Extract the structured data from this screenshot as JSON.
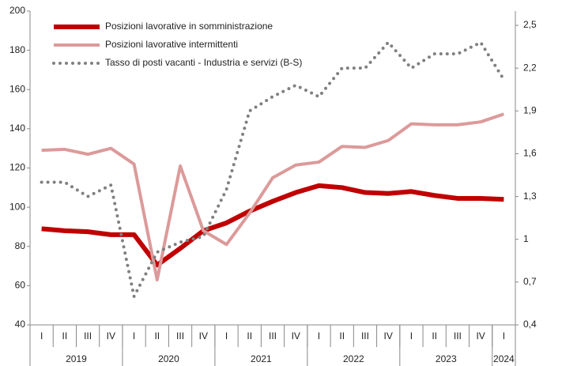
{
  "chart_data": {
    "type": "line",
    "categories": [
      "I",
      "II",
      "III",
      "IV",
      "I",
      "II",
      "III",
      "IV",
      "I",
      "II",
      "III",
      "IV",
      "I",
      "II",
      "III",
      "IV",
      "I",
      "II",
      "III",
      "IV",
      "I"
    ],
    "x_groups": [
      {
        "label": "2019",
        "span": 4
      },
      {
        "label": "2020",
        "span": 4
      },
      {
        "label": "2021",
        "span": 4
      },
      {
        "label": "2022",
        "span": 4
      },
      {
        "label": "2023",
        "span": 4
      },
      {
        "label": "2024",
        "span": 1
      }
    ],
    "ylim": [
      40,
      200
    ],
    "yticks": [
      40,
      60,
      80,
      100,
      120,
      140,
      160,
      180,
      200
    ],
    "y2lim": [
      0.4,
      2.6
    ],
    "y2ticks": [
      {
        "value": 0.4,
        "label": "0,4"
      },
      {
        "value": 0.7,
        "label": "0,7"
      },
      1,
      {
        "value": 1.3,
        "label": "1,3"
      },
      {
        "value": 1.6,
        "label": "1,6"
      },
      {
        "value": 1.9,
        "label": "1,9"
      },
      {
        "value": 2.2,
        "label": "2,2"
      },
      {
        "value": 2.5,
        "label": "2,5"
      }
    ],
    "legend": "upper left",
    "series": [
      {
        "name": "Posizioni lavorative in somministrazione",
        "color": "#c00000",
        "style": "solid",
        "width": 6,
        "values": [
          89,
          88,
          87.5,
          86,
          86,
          70.5,
          79,
          88,
          92,
          98,
          103,
          107.5,
          111,
          110,
          107.5,
          107,
          108,
          106,
          104.5,
          104.5,
          104
        ]
      },
      {
        "name": "Posizioni lavorative intermittenti",
        "color": "#dc9a9a",
        "style": "solid",
        "width": 4,
        "values": [
          129,
          129.5,
          127,
          130,
          122,
          63,
          121,
          88,
          81,
          97,
          115,
          121.5,
          123,
          131,
          130.5,
          134,
          142.5,
          142,
          142,
          143.5,
          147.5
        ]
      },
      {
        "name": "Tasso di posti vacanti - Industria e servizi (B-S)",
        "color": "#808080",
        "style": "dotted",
        "width": 4,
        "axis": "y2",
        "values": [
          1.4,
          1.4,
          1.3,
          1.38,
          0.6,
          0.91,
          0.98,
          1.02,
          1.35,
          1.9,
          2.0,
          2.08,
          2.0,
          2.2,
          2.2,
          2.38,
          2.2,
          2.3,
          2.3,
          2.38,
          2.12
        ]
      }
    ]
  }
}
